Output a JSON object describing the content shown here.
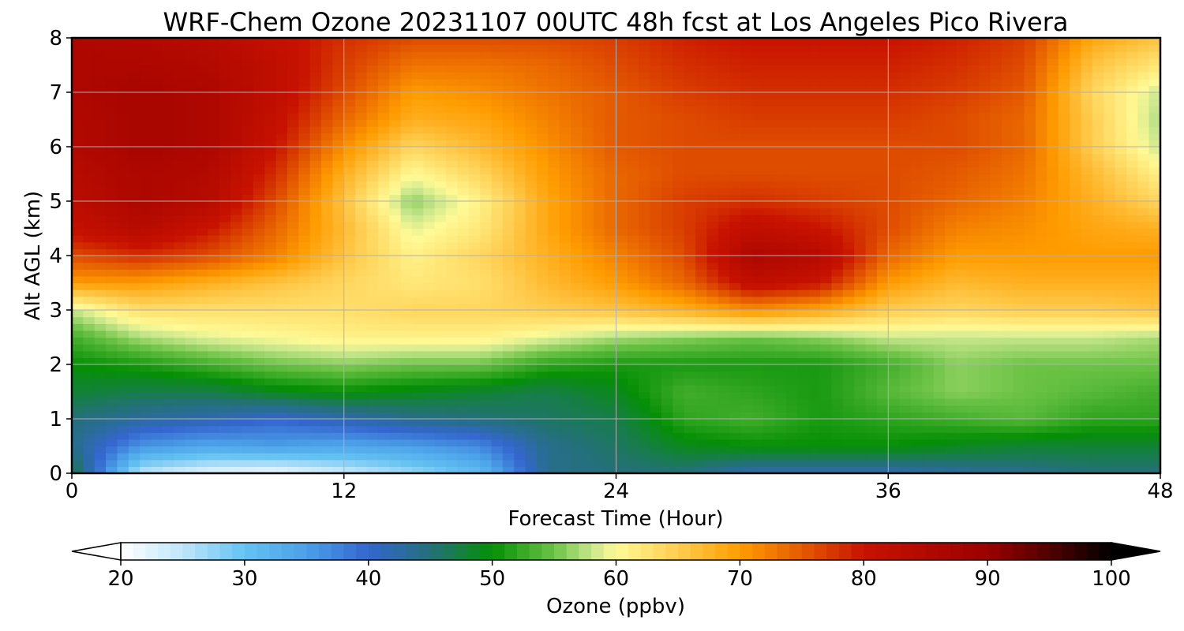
{
  "chart_data": {
    "type": "heatmap",
    "title": "WRF-Chem Ozone  20231107 00UTC 48h fcst at Los Angeles Pico Rivera",
    "xlabel": "Forecast Time (Hour)",
    "ylabel": "Alt AGL (km)",
    "xlim": [
      0,
      48
    ],
    "ylim": [
      0,
      8
    ],
    "x_ticks": [
      0,
      12,
      24,
      36,
      48
    ],
    "y_ticks": [
      0,
      1,
      2,
      3,
      4,
      5,
      6,
      7,
      8
    ],
    "grid": true,
    "x": [
      0,
      3,
      6,
      9,
      12,
      15,
      18,
      21,
      24,
      27,
      30,
      33,
      36,
      39,
      42,
      45,
      48
    ],
    "y": [
      0,
      0.5,
      1,
      1.5,
      2,
      2.5,
      3,
      3.5,
      4,
      4.5,
      5,
      5.5,
      6,
      6.5,
      7,
      7.5,
      8
    ],
    "z": [
      [
        48,
        25,
        22,
        21,
        24,
        27,
        31,
        44,
        45,
        45,
        42,
        42,
        42,
        43,
        44,
        45,
        45
      ],
      [
        44,
        36,
        34,
        35,
        34,
        35,
        37,
        44,
        46,
        49,
        50,
        50,
        50,
        49,
        48,
        48,
        48
      ],
      [
        45,
        43,
        42,
        40,
        42,
        44,
        45,
        46,
        47,
        52,
        53,
        51,
        52,
        53,
        54,
        52,
        52
      ],
      [
        48,
        47,
        47,
        49,
        50,
        49,
        48,
        47,
        49,
        53,
        52,
        51,
        54,
        56,
        55,
        54,
        53
      ],
      [
        50,
        51,
        53,
        55,
        56,
        55,
        55,
        52,
        51,
        51,
        51,
        51,
        53,
        56,
        55,
        55,
        55
      ],
      [
        53,
        57,
        59,
        60,
        61,
        61,
        61,
        59,
        57,
        56,
        55,
        56,
        58,
        58,
        58,
        58,
        57
      ],
      [
        58,
        63,
        63,
        63,
        63,
        64,
        64,
        65,
        66,
        68,
        71,
        69,
        65,
        64,
        65,
        65,
        66
      ],
      [
        70,
        70,
        68,
        66,
        64,
        62,
        63,
        67,
        70,
        74,
        82,
        80,
        70,
        67,
        68,
        68,
        68
      ],
      [
        76,
        78,
        76,
        72,
        66,
        61,
        64,
        68,
        72,
        76,
        86,
        84,
        74,
        70,
        70,
        70,
        70
      ],
      [
        81,
        84,
        80,
        74,
        67,
        59,
        62,
        69,
        74,
        77,
        82,
        80,
        76,
        72,
        71,
        69,
        68
      ],
      [
        83,
        86,
        84,
        76,
        66,
        56,
        61,
        69,
        74,
        77,
        78,
        77,
        76,
        74,
        72,
        68,
        64
      ],
      [
        84,
        86,
        85,
        78,
        68,
        60,
        64,
        70,
        74,
        76,
        76,
        76,
        76,
        75,
        73,
        67,
        61
      ],
      [
        85,
        87,
        86,
        80,
        71,
        64,
        67,
        71,
        75,
        76,
        76,
        76,
        76,
        76,
        74,
        65,
        58
      ],
      [
        85,
        87,
        86,
        81,
        74,
        68,
        69,
        72,
        75,
        76,
        77,
        77,
        77,
        76,
        74,
        65,
        57
      ],
      [
        86,
        87,
        86,
        82,
        76,
        70,
        71,
        73,
        75,
        77,
        78,
        78,
        78,
        77,
        75,
        64,
        58
      ],
      [
        86,
        86,
        85,
        82,
        77,
        73,
        73,
        74,
        76,
        78,
        79,
        79,
        79,
        78,
        76,
        66,
        62
      ],
      [
        86,
        85,
        84,
        81,
        78,
        76,
        76,
        76,
        77,
        79,
        80,
        80,
        80,
        79,
        77,
        69,
        66
      ]
    ],
    "colorbar": {
      "label": "Ozone  (ppbv)",
      "min": 20,
      "max": 100,
      "ticks": [
        20,
        30,
        40,
        50,
        60,
        70,
        80,
        90,
        100
      ],
      "extend": "both",
      "stops": [
        {
          "v": 20,
          "c": "#ffffff"
        },
        {
          "v": 25,
          "c": "#bfe6fb"
        },
        {
          "v": 30,
          "c": "#64c2f2"
        },
        {
          "v": 35,
          "c": "#4ba0e8"
        },
        {
          "v": 40,
          "c": "#3466cf"
        },
        {
          "v": 45,
          "c": "#24707a"
        },
        {
          "v": 50,
          "c": "#058f05"
        },
        {
          "v": 55,
          "c": "#6cc346"
        },
        {
          "v": 58,
          "c": "#c8e68c"
        },
        {
          "v": 60,
          "c": "#fffa96"
        },
        {
          "v": 65,
          "c": "#ffcd50"
        },
        {
          "v": 70,
          "c": "#ff9c00"
        },
        {
          "v": 75,
          "c": "#e45a00"
        },
        {
          "v": 80,
          "c": "#c81200"
        },
        {
          "v": 90,
          "c": "#9b0000"
        },
        {
          "v": 95,
          "c": "#500000"
        },
        {
          "v": 100,
          "c": "#000000"
        }
      ]
    }
  }
}
